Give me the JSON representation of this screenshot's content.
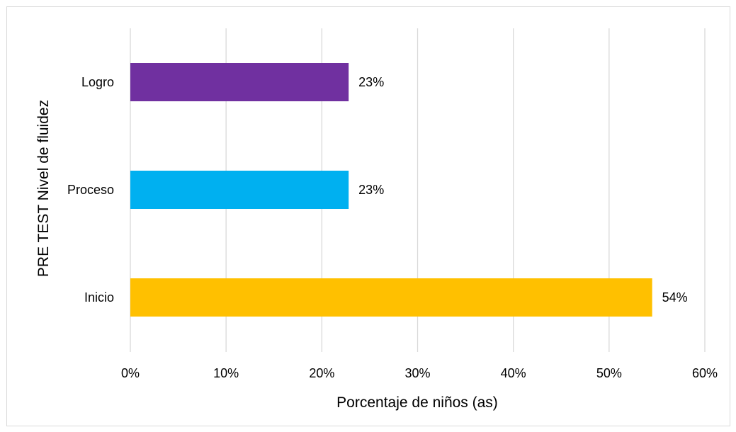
{
  "chart_data": {
    "type": "bar",
    "orientation": "horizontal",
    "title": "",
    "xlabel": "Porcentaje de niños (as)",
    "ylabel": "PRE TEST Nivel de fluidez",
    "categories": [
      "Logro",
      "Proceso",
      "Inicio"
    ],
    "values": [
      0.228,
      0.228,
      0.545
    ],
    "data_labels": [
      "23%",
      "23%",
      "54%"
    ],
    "bar_colors": [
      "#7030a0",
      "#00b0f0",
      "#ffc000"
    ],
    "xlim": [
      0,
      0.6
    ],
    "x_ticks": [
      {
        "value": 0,
        "label": "0%"
      },
      {
        "value": 0.1,
        "label": "10%"
      },
      {
        "value": 0.2,
        "label": "20%"
      },
      {
        "value": 0.3,
        "label": "30%"
      },
      {
        "value": 0.4,
        "label": "40%"
      },
      {
        "value": 0.5,
        "label": "50%"
      },
      {
        "value": 0.6,
        "label": "60%"
      }
    ],
    "grid": true,
    "legend": "none"
  }
}
